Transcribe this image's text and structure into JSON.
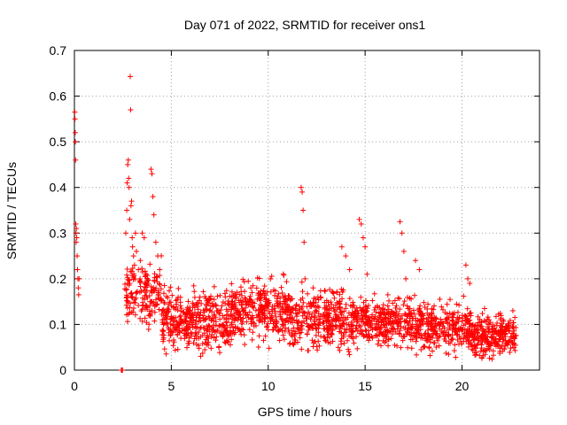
{
  "chart_data": {
    "type": "scatter",
    "title": "Day 071 of 2022, SRMTID for receiver ons1",
    "xlabel": "GPS time / hours",
    "ylabel": "SRMTID / TECUs",
    "xlim": [
      0,
      24
    ],
    "ylim": [
      0,
      0.7
    ],
    "xticks": [
      0,
      5,
      10,
      15,
      20
    ],
    "yticks": [
      0,
      0.1,
      0.2,
      0.3,
      0.4,
      0.5,
      0.6,
      0.7
    ],
    "grid": true,
    "legend": "none",
    "marker": "+",
    "color": "#ff0000",
    "series": [
      {
        "name": "ons1",
        "x": [
          0.02,
          0.03,
          0.04,
          0.05,
          0.06,
          0.07,
          0.08,
          0.09,
          0.1,
          0.12,
          0.14,
          0.16,
          0.18,
          0.2,
          0.22,
          0.24,
          2.65,
          2.7,
          2.72,
          2.75,
          2.78,
          2.8,
          2.82,
          2.85,
          2.88,
          2.9,
          2.92,
          2.95,
          2.98,
          3.0,
          3.05,
          3.1,
          3.15,
          3.2,
          3.3,
          3.4,
          3.5,
          3.6,
          3.7,
          3.8,
          3.9,
          3.95,
          4.0,
          4.05,
          4.1,
          4.2,
          4.3,
          4.4,
          11.7,
          11.75,
          11.8,
          11.85,
          11.9,
          14.7,
          14.8,
          14.9,
          15.0,
          15.1,
          16.8,
          16.9,
          17.0,
          17.1,
          13.8,
          14.0,
          14.2,
          17.6,
          17.8,
          20.2,
          20.3,
          20.4
        ],
        "y": [
          0.565,
          0.55,
          0.52,
          0.5,
          0.46,
          0.32,
          0.3,
          0.28,
          0.31,
          0.29,
          0.25,
          0.22,
          0.2,
          0.18,
          0.165,
          0.2,
          0.3,
          0.35,
          0.41,
          0.45,
          0.46,
          0.42,
          0.4,
          0.33,
          0.643,
          0.57,
          0.36,
          0.37,
          0.29,
          0.27,
          0.25,
          0.23,
          0.3,
          0.26,
          0.22,
          0.24,
          0.3,
          0.29,
          0.21,
          0.19,
          0.15,
          0.44,
          0.43,
          0.38,
          0.34,
          0.28,
          0.25,
          0.22,
          0.4,
          0.39,
          0.35,
          0.28,
          0.2,
          0.33,
          0.32,
          0.29,
          0.27,
          0.21,
          0.325,
          0.3,
          0.26,
          0.2,
          0.27,
          0.25,
          0.22,
          0.24,
          0.22,
          0.23,
          0.2,
          0.19
        ]
      }
    ],
    "outliers": [
      {
        "x": 2.42,
        "y": 0.0
      },
      {
        "x": 2.45,
        "y": 0.0
      },
      {
        "x": 2.48,
        "y": 0.0
      }
    ],
    "bulk_bands": [
      {
        "x_start": 2.6,
        "x_end": 4.5,
        "y_min": 0.07,
        "y_max": 0.26,
        "count": 160
      },
      {
        "x_start": 4.5,
        "x_end": 8.0,
        "y_min": 0.02,
        "y_max": 0.2,
        "count": 380
      },
      {
        "x_start": 8.0,
        "x_end": 11.0,
        "y_min": 0.04,
        "y_max": 0.22,
        "count": 330
      },
      {
        "x_start": 11.0,
        "x_end": 14.5,
        "y_min": 0.02,
        "y_max": 0.2,
        "count": 360
      },
      {
        "x_start": 14.5,
        "x_end": 17.5,
        "y_min": 0.03,
        "y_max": 0.18,
        "count": 300
      },
      {
        "x_start": 17.5,
        "x_end": 20.5,
        "y_min": 0.02,
        "y_max": 0.17,
        "count": 300
      },
      {
        "x_start": 20.5,
        "x_end": 22.8,
        "y_min": 0.01,
        "y_max": 0.14,
        "count": 260
      }
    ]
  }
}
